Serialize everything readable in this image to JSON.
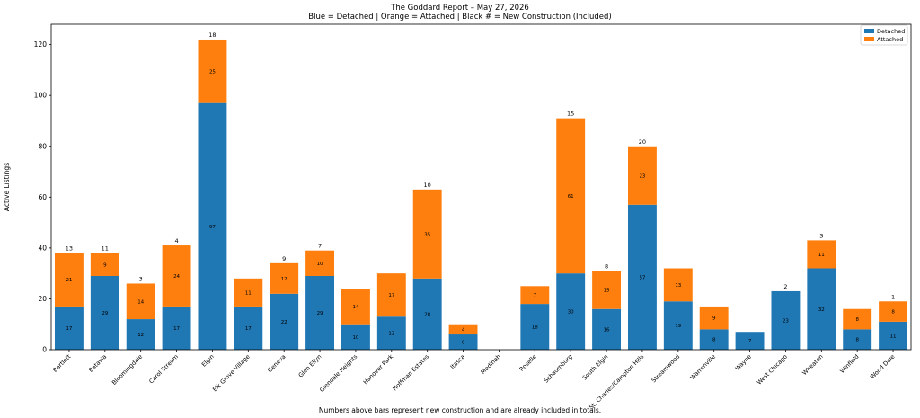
{
  "chart_data": {
    "type": "bar",
    "stacked": true,
    "title": "The Goddard Report – May 27, 2026",
    "subtitle": "Blue = Detached | Orange = Attached | Black # = New Construction (Included)",
    "ylabel": "Active Listings",
    "xlabel": "",
    "footnote": "Numbers above bars represent new construction and are already included in totals.",
    "ylim": [
      0,
      128
    ],
    "yticks": [
      0,
      20,
      40,
      60,
      80,
      100,
      120
    ],
    "grid": false,
    "legend_position": "top-right",
    "colors": {
      "Detached": "#1f77b4",
      "Attached": "#ff7f0e"
    },
    "categories": [
      "Bartlett",
      "Batavia",
      "Bloomingdale",
      "Carol Stream",
      "Elgin",
      "Elk Grove Village",
      "Geneva",
      "Glen Ellyn",
      "Glendale Heights",
      "Hanover Park",
      "Hoffman Estates",
      "Itasca",
      "Medinah",
      "Roselle",
      "Schaumburg",
      "South Elgin",
      "St. Charles/Campton Hills",
      "Streamwood",
      "Warrenville",
      "Wayne",
      "West Chicago",
      "Wheaton",
      "Winfield",
      "Wood Dale"
    ],
    "series": [
      {
        "name": "Detached",
        "values": [
          17,
          29,
          12,
          17,
          97,
          17,
          22,
          29,
          10,
          13,
          28,
          6,
          0,
          18,
          30,
          16,
          57,
          19,
          8,
          7,
          23,
          32,
          8,
          11
        ]
      },
      {
        "name": "Attached",
        "values": [
          21,
          9,
          14,
          24,
          25,
          11,
          12,
          10,
          14,
          17,
          35,
          4,
          0,
          7,
          61,
          15,
          23,
          13,
          9,
          0,
          0,
          11,
          8,
          8
        ]
      }
    ],
    "new_construction": [
      13,
      11,
      3,
      4,
      18,
      null,
      9,
      7,
      null,
      null,
      10,
      null,
      null,
      null,
      15,
      8,
      20,
      null,
      null,
      null,
      2,
      3,
      null,
      1
    ],
    "segment_labels": {
      "Detached": [
        "17",
        "29",
        "12",
        "17",
        "97",
        "17",
        "22",
        "29",
        "10",
        "13",
        "28",
        "6",
        "",
        "18",
        "30",
        "16",
        "57",
        "19",
        "8",
        "7",
        "23",
        "32",
        "8",
        "11"
      ],
      "Attached": [
        "21",
        "9",
        "14",
        "24",
        "25",
        "11",
        "12",
        "10",
        "14",
        "17",
        "35",
        "4",
        "",
        "7",
        "61",
        "15",
        "23",
        "13",
        "9",
        "",
        "",
        "11",
        "8",
        "8"
      ]
    }
  }
}
